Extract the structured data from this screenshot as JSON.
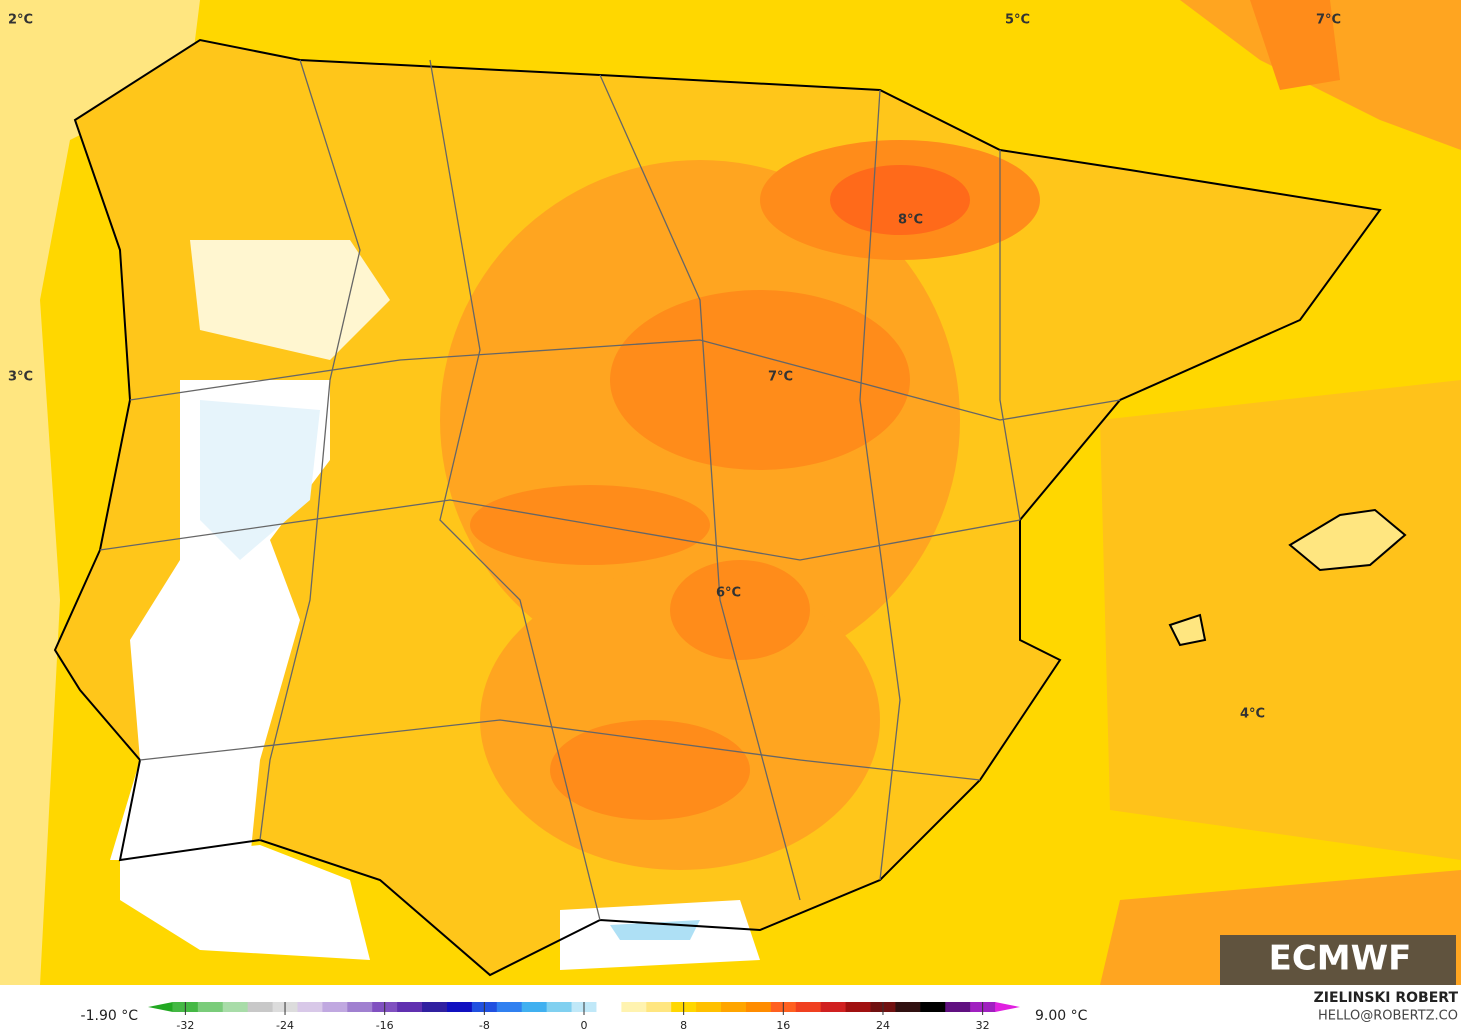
{
  "map_labels": [
    "2°C",
    "3°C",
    "5°C",
    "7°C",
    "8°C",
    "7°C",
    "6°C",
    "4°C"
  ],
  "colorbar": {
    "min_label": "-1.90 °C",
    "max_label": "9.00 °C",
    "range": [
      -35,
      35
    ],
    "ticks": [
      -32,
      -24,
      -16,
      -8,
      0,
      8,
      16,
      24,
      32
    ],
    "colors": [
      "#22a822",
      "#44b844",
      "#7acc7a",
      "#a8dca8",
      "#c8c8c8",
      "#dcdcdc",
      "#d8c8e8",
      "#c0a8e0",
      "#a080d0",
      "#8050c0",
      "#6030b0",
      "#3020a0",
      "#1010c0",
      "#2050e0",
      "#3080f0",
      "#40b0f0",
      "#80d0f0",
      "#c0e8f8",
      "#ffffff",
      "#fff3b0",
      "#ffe680",
      "#ffd700",
      "#ffc000",
      "#ffa500",
      "#ff8c00",
      "#ff6020",
      "#f04020",
      "#d02020",
      "#a01010",
      "#701010",
      "#301010",
      "#000000",
      "#601080",
      "#a020c0",
      "#e020e0"
    ]
  },
  "branding": {
    "logo": "ECMWF",
    "author": "ZIELINSKI ROBERT",
    "contact": "HELLO@ROBERTZ.CO"
  }
}
